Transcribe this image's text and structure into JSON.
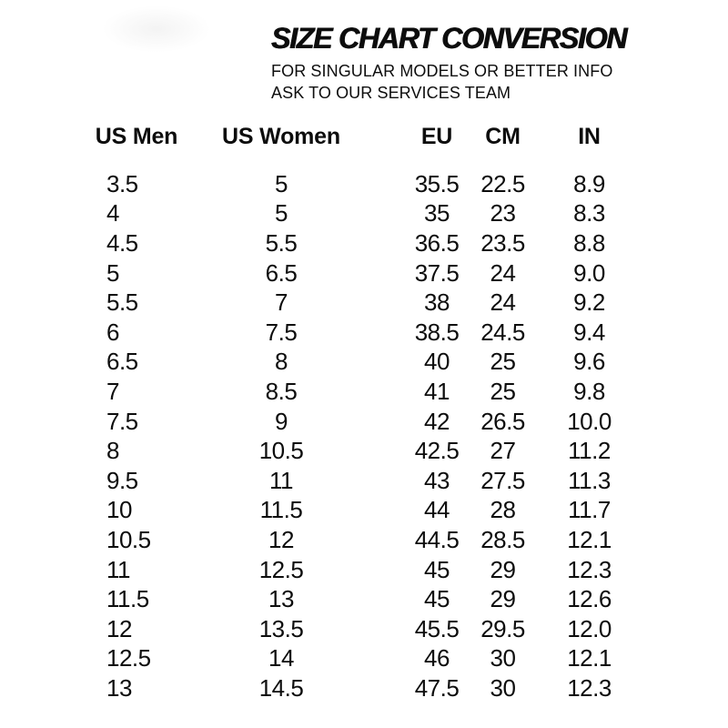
{
  "page": {
    "background_color": "#ffffff",
    "text_color": "#0d0d0d"
  },
  "header": {
    "title": "SIZE CHART CONVERSION",
    "subtitle_line1": "FOR SINGULAR MODELS OR BETTER INFO",
    "subtitle_line2": "ASK TO OUR SERVICES TEAM"
  },
  "chart_data": {
    "type": "table",
    "title": "SIZE CHART CONVERSION",
    "columns": [
      "US Men",
      "US Women",
      "EU",
      "CM",
      "IN"
    ],
    "rows": [
      [
        "3.5",
        "5",
        "35.5",
        "22.5",
        "8.9"
      ],
      [
        "4",
        "5",
        "35",
        "23",
        "8.3"
      ],
      [
        "4.5",
        "5.5",
        "36.5",
        "23.5",
        "8.8"
      ],
      [
        "5",
        "6.5",
        "37.5",
        "24",
        "9.0"
      ],
      [
        "5.5",
        "7",
        "38",
        "24",
        "9.2"
      ],
      [
        "6",
        "7.5",
        "38.5",
        "24.5",
        "9.4"
      ],
      [
        "6.5",
        "8",
        "40",
        "25",
        "9.6"
      ],
      [
        "7",
        "8.5",
        "41",
        "25",
        "9.8"
      ],
      [
        "7.5",
        "9",
        "42",
        "26.5",
        "10.0"
      ],
      [
        "8",
        "10.5",
        "42.5",
        "27",
        "11.2"
      ],
      [
        "9.5",
        "11",
        "43",
        "27.5",
        "11.3"
      ],
      [
        "10",
        "11.5",
        "44",
        "28",
        "11.7"
      ],
      [
        "10.5",
        "12",
        "44.5",
        "28.5",
        "12.1"
      ],
      [
        "11",
        "12.5",
        "45",
        "29",
        "12.3"
      ],
      [
        "11.5",
        "13",
        "45",
        "29",
        "12.6"
      ],
      [
        "12",
        "13.5",
        "45.5",
        "29.5",
        "12.0"
      ],
      [
        "12.5",
        "14",
        "46",
        "30",
        "12.1"
      ],
      [
        "13",
        "14.5",
        "47.5",
        "30",
        "12.3"
      ]
    ]
  }
}
